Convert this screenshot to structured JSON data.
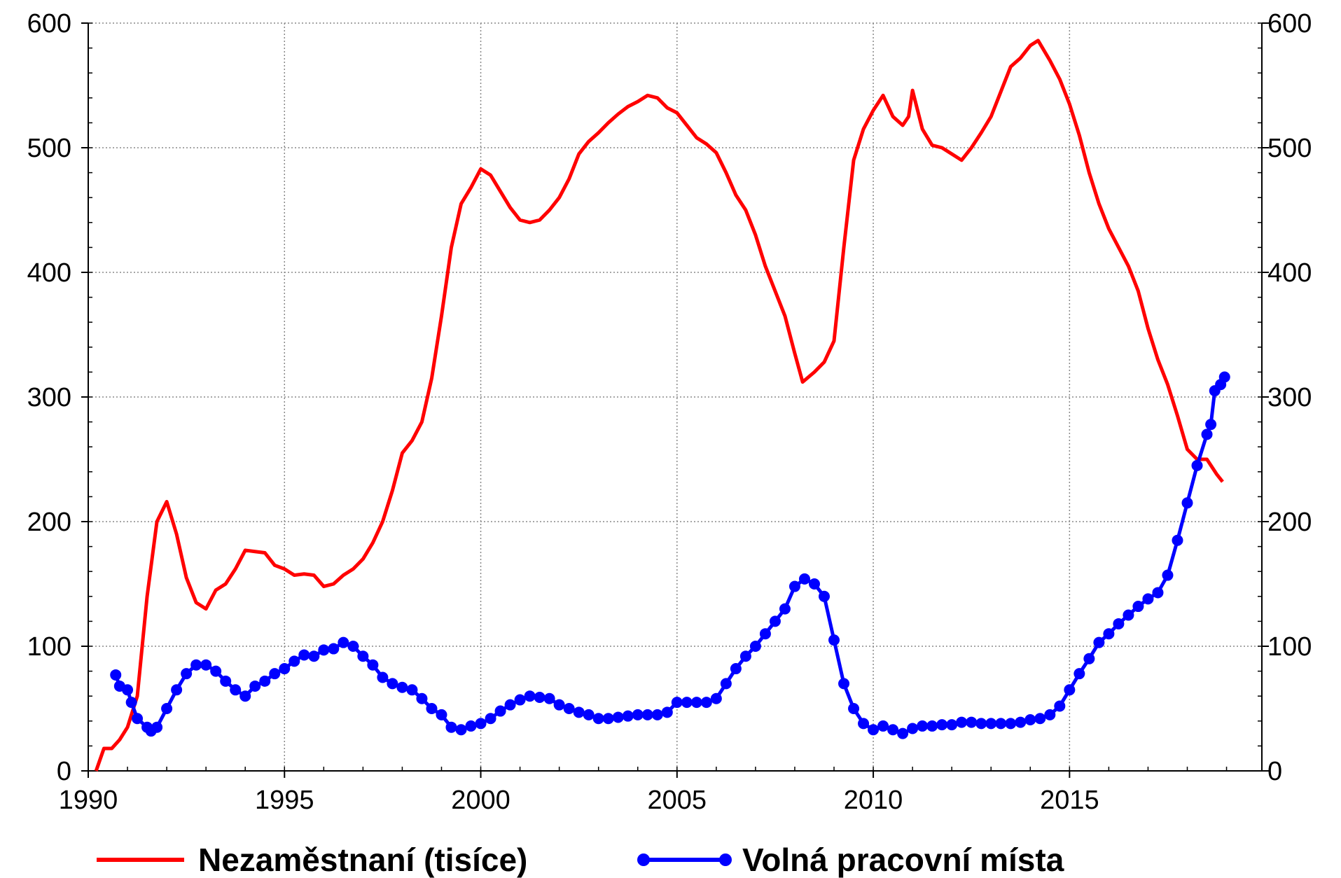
{
  "chart_data": {
    "type": "line",
    "xlim": [
      1990,
      2019.9
    ],
    "xticks": [
      1990,
      1995,
      2000,
      2005,
      2010,
      2015
    ],
    "ylim": [
      0,
      600
    ],
    "yticks": [
      0,
      100,
      200,
      300,
      400,
      500,
      600
    ],
    "y2lim": [
      0,
      600
    ],
    "y2ticks": [
      0,
      100,
      200,
      300,
      400,
      500,
      600
    ],
    "grid": true,
    "legend": "bottom",
    "series": [
      {
        "name": "Nezaměstnaní (tisíce)",
        "color": "#ff0000",
        "markers": false,
        "x": [
          1990.2,
          1990.4,
          1990.6,
          1990.8,
          1991.0,
          1991.25,
          1991.5,
          1991.75,
          1992.0,
          1992.25,
          1992.5,
          1992.75,
          1993.0,
          1993.25,
          1993.5,
          1993.75,
          1994.0,
          1994.25,
          1994.5,
          1994.75,
          1995.0,
          1995.25,
          1995.5,
          1995.75,
          1996.0,
          1996.25,
          1996.5,
          1996.75,
          1997.0,
          1997.25,
          1997.5,
          1997.75,
          1998.0,
          1998.25,
          1998.5,
          1998.75,
          1999.0,
          1999.25,
          1999.5,
          1999.75,
          2000.0,
          2000.25,
          2000.5,
          2000.75,
          2001.0,
          2001.25,
          2001.5,
          2001.75,
          2002.0,
          2002.25,
          2002.5,
          2002.75,
          2003.0,
          2003.25,
          2003.5,
          2003.75,
          2004.0,
          2004.25,
          2004.5,
          2004.75,
          2005.0,
          2005.25,
          2005.5,
          2005.75,
          2006.0,
          2006.25,
          2006.5,
          2006.75,
          2007.0,
          2007.25,
          2007.5,
          2007.75,
          2008.0,
          2008.2,
          2008.5,
          2008.75,
          2009.0,
          2009.25,
          2009.5,
          2009.75,
          2010.0,
          2010.25,
          2010.5,
          2010.75,
          2010.9,
          2011.0,
          2011.25,
          2011.5,
          2011.75,
          2012.0,
          2012.25,
          2012.5,
          2012.75,
          2013.0,
          2013.25,
          2013.5,
          2013.75,
          2014.0,
          2014.2,
          2014.5,
          2014.75,
          2015.0,
          2015.25,
          2015.5,
          2015.75,
          2016.0,
          2016.25,
          2016.5,
          2016.75,
          2017.0,
          2017.25,
          2017.5,
          2017.75,
          2018.0,
          2018.25,
          2018.5,
          2018.75,
          2018.9
        ],
        "values": [
          0,
          18,
          18,
          25,
          35,
          60,
          140,
          200,
          216,
          190,
          155,
          135,
          130,
          145,
          150,
          162,
          177,
          176,
          175,
          165,
          162,
          157,
          158,
          157,
          148,
          150,
          157,
          162,
          170,
          183,
          200,
          225,
          255,
          265,
          280,
          315,
          365,
          420,
          455,
          468,
          483,
          478,
          465,
          452,
          442,
          440,
          442,
          450,
          460,
          475,
          495,
          505,
          512,
          520,
          527,
          533,
          537,
          542,
          540,
          532,
          528,
          518,
          508,
          503,
          496,
          480,
          462,
          450,
          430,
          405,
          385,
          365,
          335,
          312,
          320,
          328,
          345,
          420,
          490,
          515,
          530,
          542,
          525,
          518,
          525,
          546,
          515,
          502,
          500,
          495,
          490,
          500,
          512,
          525,
          545,
          565,
          572,
          582,
          586,
          570,
          555,
          535,
          510,
          480,
          455,
          435,
          420,
          405,
          385,
          355,
          330,
          310,
          285,
          258,
          250,
          250,
          238,
          232
        ]
      },
      {
        "name": "Volná pracovní místa",
        "color": "#0000ff",
        "markers": true,
        "x": [
          1990.7,
          1990.8,
          1991.0,
          1991.1,
          1991.25,
          1991.5,
          1991.6,
          1991.75,
          1992.0,
          1992.25,
          1992.5,
          1992.75,
          1993.0,
          1993.25,
          1993.5,
          1993.75,
          1994.0,
          1994.25,
          1994.5,
          1994.75,
          1995.0,
          1995.25,
          1995.5,
          1995.75,
          1996.0,
          1996.25,
          1996.5,
          1996.75,
          1997.0,
          1997.25,
          1997.5,
          1997.75,
          1998.0,
          1998.25,
          1998.5,
          1998.75,
          1999.0,
          1999.25,
          1999.5,
          1999.75,
          2000.0,
          2000.25,
          2000.5,
          2000.75,
          2001.0,
          2001.25,
          2001.5,
          2001.75,
          2002.0,
          2002.25,
          2002.5,
          2002.75,
          2003.0,
          2003.25,
          2003.5,
          2003.75,
          2004.0,
          2004.25,
          2004.5,
          2004.75,
          2005.0,
          2005.25,
          2005.5,
          2005.75,
          2006.0,
          2006.25,
          2006.5,
          2006.75,
          2007.0,
          2007.25,
          2007.5,
          2007.75,
          2008.0,
          2008.25,
          2008.5,
          2008.75,
          2009.0,
          2009.25,
          2009.5,
          2009.75,
          2010.0,
          2010.25,
          2010.5,
          2010.75,
          2011.0,
          2011.25,
          2011.5,
          2011.75,
          2012.0,
          2012.25,
          2012.5,
          2012.75,
          2013.0,
          2013.25,
          2013.5,
          2013.75,
          2014.0,
          2014.25,
          2014.5,
          2014.75,
          2015.0,
          2015.25,
          2015.5,
          2015.75,
          2016.0,
          2016.25,
          2016.5,
          2016.75,
          2017.0,
          2017.25,
          2017.5,
          2017.75,
          2018.0,
          2018.25,
          2018.5,
          2018.6,
          2018.7,
          2018.85,
          2018.95
        ],
        "values": [
          77,
          68,
          65,
          55,
          42,
          35,
          32,
          35,
          50,
          65,
          78,
          85,
          85,
          80,
          72,
          65,
          60,
          68,
          72,
          78,
          82,
          88,
          93,
          92,
          97,
          98,
          103,
          100,
          92,
          85,
          75,
          70,
          67,
          65,
          58,
          50,
          45,
          35,
          33,
          36,
          38,
          42,
          48,
          53,
          57,
          60,
          59,
          58,
          53,
          50,
          47,
          45,
          42,
          42,
          43,
          44,
          45,
          45,
          45,
          47,
          55,
          55,
          55,
          55,
          58,
          70,
          82,
          92,
          100,
          110,
          120,
          130,
          148,
          154,
          150,
          140,
          105,
          70,
          50,
          38,
          33,
          36,
          33,
          30,
          34,
          36,
          36,
          37,
          37,
          39,
          39,
          38,
          38,
          38,
          38,
          39,
          41,
          42,
          45,
          52,
          65,
          78,
          90,
          103,
          110,
          118,
          125,
          132,
          138,
          143,
          157,
          185,
          215,
          245,
          270,
          278,
          305,
          310,
          316
        ]
      }
    ]
  }
}
